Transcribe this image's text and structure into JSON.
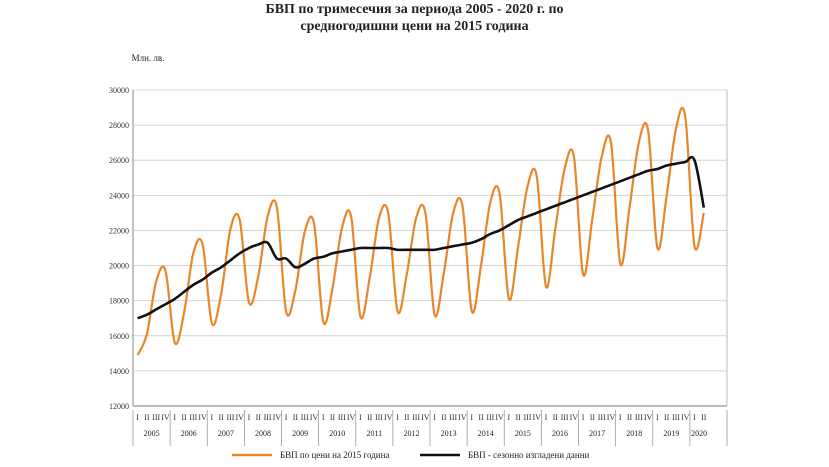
{
  "title_line1": "БВП по тримесечия за периода 2005 - 2020 г. по",
  "title_line2": "средногодишни цени на 2015 година",
  "chart_data": {
    "type": "line",
    "unit_label": "Млн. лв.",
    "ylim": [
      12000,
      30000
    ],
    "yticks": [
      12000,
      14000,
      16000,
      18000,
      20000,
      22000,
      24000,
      26000,
      28000,
      30000
    ],
    "grid": true,
    "legend_position": "bottom",
    "quarter_labels": [
      "I",
      "II",
      "III",
      "IV"
    ],
    "years": [
      "2005",
      "2006",
      "2007",
      "2008",
      "2009",
      "2010",
      "2011",
      "2012",
      "2013",
      "2014",
      "2015",
      "2016",
      "2017",
      "2018",
      "2019",
      "2020"
    ],
    "series": [
      {
        "name": "БВП по цени на 2015 година",
        "color": "#e8862a",
        "values": [
          14900,
          16100,
          19100,
          19700,
          15600,
          17300,
          20700,
          21200,
          16700,
          18400,
          22100,
          22600,
          17900,
          19400,
          22800,
          23300,
          17400,
          18600,
          21900,
          22400,
          16800,
          18700,
          22100,
          22800,
          17100,
          19300,
          22700,
          23000,
          17400,
          19500,
          22700,
          23000,
          17200,
          19600,
          23000,
          23400,
          17400,
          20000,
          23600,
          24100,
          18100,
          21100,
          24500,
          25100,
          18800,
          22100,
          25500,
          26200,
          19500,
          22700,
          26200,
          27000,
          20100,
          23300,
          27000,
          27700,
          21000,
          24000,
          27800,
          28500,
          21100,
          23000
        ]
      },
      {
        "name": "БВП - сезонно изгладени данни",
        "color": "#111111",
        "values": [
          17000,
          17200,
          17500,
          17800,
          18100,
          18500,
          18900,
          19200,
          19600,
          19900,
          20300,
          20700,
          21000,
          21200,
          21300,
          20400,
          20400,
          19900,
          20100,
          20400,
          20500,
          20700,
          20800,
          20900,
          21000,
          21000,
          21000,
          21000,
          20900,
          20900,
          20900,
          20900,
          20900,
          21000,
          21100,
          21200,
          21300,
          21500,
          21800,
          22000,
          22300,
          22600,
          22800,
          23000,
          23200,
          23400,
          23600,
          23800,
          24000,
          24200,
          24400,
          24600,
          24800,
          25000,
          25200,
          25400,
          25500,
          25700,
          25800,
          25900,
          26000,
          23300
        ]
      }
    ]
  }
}
